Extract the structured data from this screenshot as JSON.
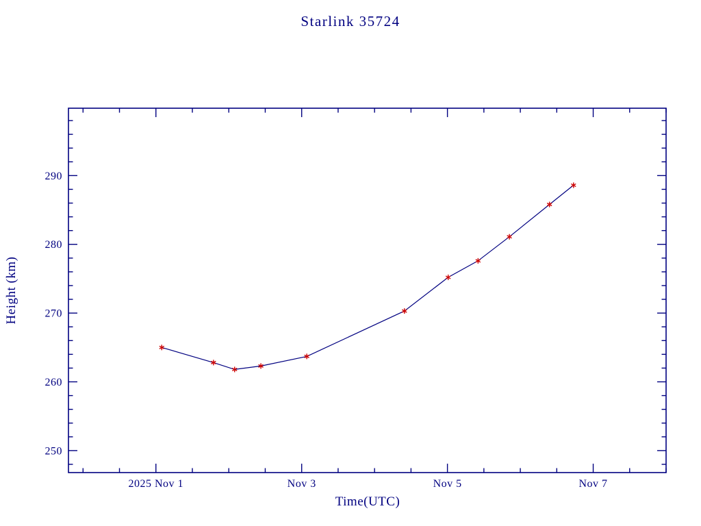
{
  "page": {
    "background": "#ffffff"
  },
  "chart_data": {
    "type": "line",
    "title": "Starlink 35724",
    "xlabel": "Time(UTC)",
    "ylabel": "Height (km)",
    "xlim": [
      -0.2,
      8.0
    ],
    "ylim": [
      246.8,
      299.8
    ],
    "grid": false,
    "legend": "none",
    "x_ticks": [
      {
        "value": 1,
        "label": "2025 Nov 1"
      },
      {
        "value": 3,
        "label": "Nov 3"
      },
      {
        "value": 5,
        "label": "Nov 5"
      },
      {
        "value": 7,
        "label": "Nov 7"
      }
    ],
    "x_minor_step": 0.5,
    "y_ticks": [
      {
        "value": 250,
        "label": "250"
      },
      {
        "value": 260,
        "label": "260"
      },
      {
        "value": 270,
        "label": "270"
      },
      {
        "value": 280,
        "label": "280"
      },
      {
        "value": 290,
        "label": "290"
      }
    ],
    "y_minor_step": 2,
    "series": [
      {
        "name": "height",
        "marker": "asterisk",
        "x": [
          1.08,
          1.79,
          2.08,
          2.44,
          3.07,
          4.41,
          5.01,
          5.42,
          5.85,
          6.4,
          6.73
        ],
        "y": [
          265.0,
          262.8,
          261.8,
          262.3,
          263.7,
          270.3,
          275.2,
          277.6,
          281.1,
          285.8,
          288.6
        ]
      }
    ],
    "colors": {
      "axis": "#000080",
      "text": "#000080",
      "line": "#000080",
      "marker": "#cc0000"
    }
  }
}
